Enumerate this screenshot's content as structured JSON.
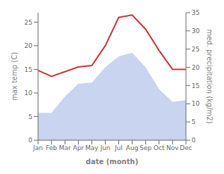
{
  "chart_data": {
    "type": "line",
    "xlabel": "date (month)",
    "ylabel": "max temp (C)",
    "y2label": "med. precipitation (kg/m2)",
    "categories": [
      "Jan",
      "Feb",
      "Mar",
      "Apr",
      "May",
      "Jun",
      "Jul",
      "Aug",
      "Sep",
      "Oct",
      "Nov",
      "Dec"
    ],
    "series": [
      {
        "type": "area",
        "axis": "y2",
        "color": "#c8d4f0",
        "values": [
          7.5,
          7.5,
          12.0,
          15.5,
          15.8,
          20.0,
          23.0,
          24.0,
          20.0,
          14.0,
          10.5,
          11.0
        ]
      },
      {
        "type": "line",
        "color": "#cc3333",
        "values": [
          14.8,
          13.5,
          14.5,
          15.5,
          15.8,
          20.0,
          26.0,
          26.5,
          23.5,
          19.0,
          15.0,
          15.0
        ]
      }
    ],
    "ylim": [
      0,
      27
    ],
    "yticks": [
      0,
      5,
      10,
      15,
      20,
      25
    ],
    "y2lim": [
      0,
      35
    ],
    "y2ticks": [
      0,
      5,
      10,
      15,
      20,
      25,
      30,
      35
    ],
    "grid": false
  }
}
